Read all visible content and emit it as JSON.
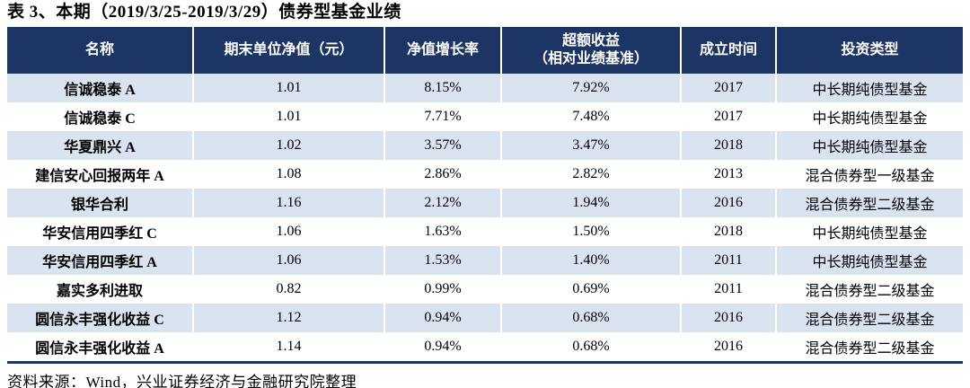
{
  "title": "表 3、本期（2019/3/25-2019/3/29）债券型基金业绩",
  "table": {
    "columns": [
      {
        "label": "名称"
      },
      {
        "label": "期末单位净值（元）"
      },
      {
        "label": "净值增长率"
      },
      {
        "label": "超额收益",
        "label2": "（相对业绩基准）"
      },
      {
        "label": "成立时间"
      },
      {
        "label": "投资类型"
      }
    ],
    "rows": [
      {
        "name": "信诚稳泰 A",
        "nav": "1.01",
        "growth": "8.15%",
        "excess": "7.92%",
        "inception": "2017",
        "type": "中长期纯债型基金"
      },
      {
        "name": "信诚稳泰 C",
        "nav": "1.01",
        "growth": "7.71%",
        "excess": "7.48%",
        "inception": "2017",
        "type": "中长期纯债型基金"
      },
      {
        "name": "华夏鼎兴 A",
        "nav": "1.02",
        "growth": "3.57%",
        "excess": "3.47%",
        "inception": "2018",
        "type": "中长期纯债型基金"
      },
      {
        "name": "建信安心回报两年 A",
        "nav": "1.08",
        "growth": "2.86%",
        "excess": "2.82%",
        "inception": "2013",
        "type": "混合债券型一级基金"
      },
      {
        "name": "银华合利",
        "nav": "1.16",
        "growth": "2.12%",
        "excess": "1.94%",
        "inception": "2016",
        "type": "混合债券型二级基金"
      },
      {
        "name": "华安信用四季红 C",
        "nav": "1.06",
        "growth": "1.63%",
        "excess": "1.50%",
        "inception": "2018",
        "type": "中长期纯债型基金"
      },
      {
        "name": "华安信用四季红 A",
        "nav": "1.06",
        "growth": "1.53%",
        "excess": "1.40%",
        "inception": "2011",
        "type": "中长期纯债型基金"
      },
      {
        "name": "嘉实多利进取",
        "nav": "0.82",
        "growth": "0.99%",
        "excess": "0.69%",
        "inception": "2011",
        "type": "混合债券型二级基金"
      },
      {
        "name": "圆信永丰强化收益 C",
        "nav": "1.12",
        "growth": "0.94%",
        "excess": "0.68%",
        "inception": "2016",
        "type": "混合债券型二级基金"
      },
      {
        "name": "圆信永丰强化收益 A",
        "nav": "1.14",
        "growth": "0.94%",
        "excess": "0.68%",
        "inception": "2016",
        "type": "混合债券型二级基金"
      }
    ]
  },
  "source": "资料来源：Wind，兴业证券经济与金融研究院整理",
  "colors": {
    "header_bg": "#1C3564",
    "row_alt": "#DAE3F0",
    "border": "#1C3564"
  }
}
